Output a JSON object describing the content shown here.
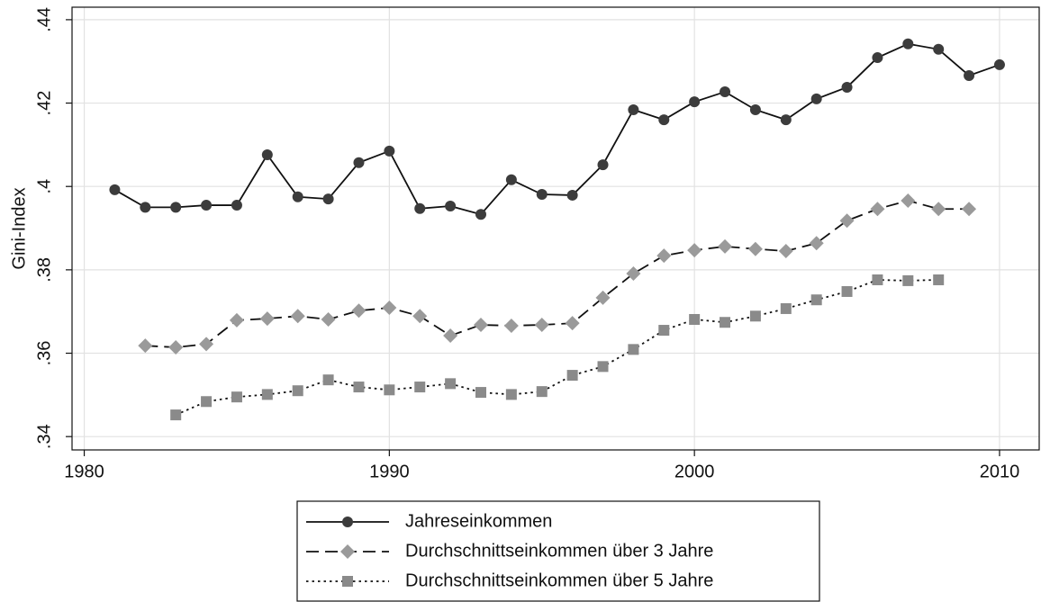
{
  "chart_data": {
    "type": "line",
    "y_label": "Gini-Index",
    "x": [
      1981,
      1982,
      1983,
      1984,
      1985,
      1986,
      1987,
      1988,
      1989,
      1990,
      1991,
      1992,
      1993,
      1994,
      1995,
      1996,
      1997,
      1998,
      1999,
      2000,
      2001,
      2002,
      2003,
      2004,
      2005,
      2006,
      2007,
      2008,
      2009,
      2010
    ],
    "series": [
      {
        "name": "Jahreseinkommen",
        "color": "#3c3c3c",
        "line_color": "#111111",
        "line_style": "solid",
        "marker": "circle",
        "values": [
          0.3992,
          0.395,
          0.395,
          0.3955,
          0.3955,
          0.4076,
          0.3975,
          0.397,
          0.4057,
          0.4085,
          0.3947,
          0.3953,
          0.3933,
          0.4016,
          0.3981,
          0.3979,
          0.4052,
          0.4184,
          0.416,
          0.4203,
          0.4227,
          0.4184,
          0.416,
          0.421,
          0.4238,
          0.4309,
          0.4342,
          0.4329,
          0.4266,
          0.4292
        ]
      },
      {
        "name": "Durchschnittseinkommen über 3 Jahre",
        "color": "#9a9a9a",
        "line_color": "#111111",
        "line_style": "dashed",
        "marker": "diamond",
        "values": [
          null,
          0.3618,
          0.3614,
          0.3622,
          0.3679,
          0.3683,
          0.3689,
          0.3681,
          0.3702,
          0.3709,
          0.3689,
          0.3642,
          0.3668,
          0.3666,
          0.3668,
          0.3672,
          0.3733,
          0.3791,
          0.3834,
          0.3847,
          0.3856,
          0.385,
          0.3845,
          0.3864,
          0.3918,
          0.3946,
          0.3966,
          0.3946,
          0.3946,
          null
        ]
      },
      {
        "name": "Durchschnittseinkommen über 5 Jahre",
        "color": "#8a8a8a",
        "line_color": "#111111",
        "line_style": "dotted",
        "marker": "square",
        "values": [
          null,
          null,
          0.3452,
          0.3484,
          0.3495,
          0.3501,
          0.351,
          0.3536,
          0.3519,
          0.3512,
          0.3519,
          0.3527,
          0.3506,
          0.3501,
          0.3508,
          0.3547,
          0.3568,
          0.3609,
          0.3655,
          0.3681,
          0.3674,
          0.3689,
          0.3707,
          0.3728,
          0.3748,
          0.3776,
          0.3774,
          0.3776,
          null,
          null
        ]
      }
    ],
    "xlim": [
      1979.6,
      2011.3
    ],
    "ylim": [
      0.3368,
      0.443
    ],
    "xticks": [
      1980,
      1990,
      2000,
      2010
    ],
    "yticks": [
      {
        "value": 0.34,
        "label": ".34"
      },
      {
        "value": 0.36,
        "label": ".36"
      },
      {
        "value": 0.38,
        "label": ".38"
      },
      {
        "value": 0.4,
        "label": ".4"
      },
      {
        "value": 0.42,
        "label": ".42"
      },
      {
        "value": 0.44,
        "label": ".44"
      }
    ],
    "grid": true
  }
}
